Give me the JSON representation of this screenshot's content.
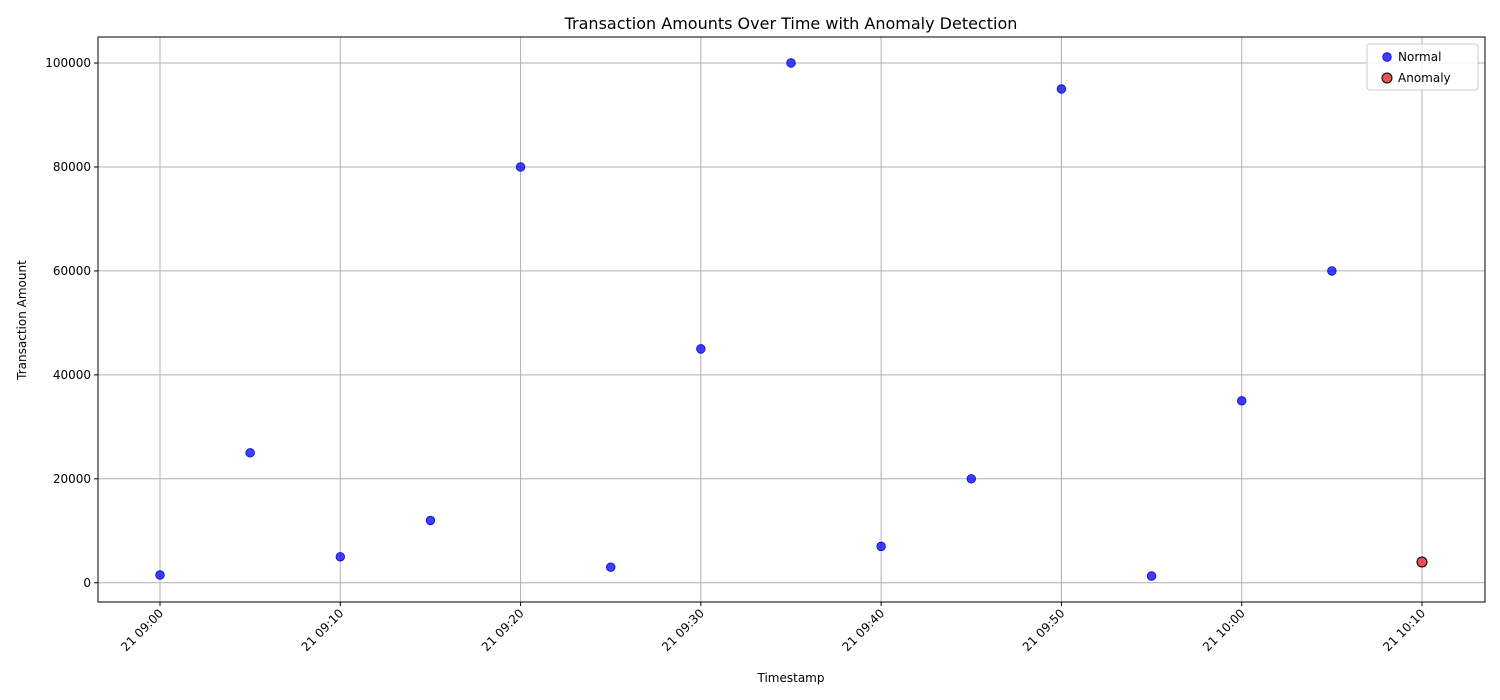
{
  "chart_data": {
    "type": "scatter",
    "title": "Transaction Amounts Over Time with Anomaly Detection",
    "xlabel": "Timestamp",
    "ylabel": "Transaction Amount",
    "x_ticks": [
      "21 09:00",
      "21 09:10",
      "21 09:20",
      "21 09:30",
      "21 09:40",
      "21 09:50",
      "21 10:00",
      "21 10:10"
    ],
    "y_ticks": [
      "0",
      "20000",
      "40000",
      "60000",
      "80000",
      "100000"
    ],
    "ylim": [
      -3700,
      105000
    ],
    "grid": true,
    "legend_position": "top-right",
    "series": [
      {
        "name": "Normal",
        "color": "#0000ee",
        "points": [
          {
            "x": "21 09:00",
            "y": 1500
          },
          {
            "x": "21 09:05",
            "y": 25000
          },
          {
            "x": "21 09:10",
            "y": 5000
          },
          {
            "x": "21 09:15",
            "y": 12000
          },
          {
            "x": "21 09:20",
            "y": 80000
          },
          {
            "x": "21 09:25",
            "y": 3000
          },
          {
            "x": "21 09:30",
            "y": 45000
          },
          {
            "x": "21 09:35",
            "y": 100000
          },
          {
            "x": "21 09:40",
            "y": 7000
          },
          {
            "x": "21 09:45",
            "y": 20000
          },
          {
            "x": "21 09:50",
            "y": 95000
          },
          {
            "x": "21 09:55",
            "y": 1300
          },
          {
            "x": "21 10:00",
            "y": 35000
          },
          {
            "x": "21 10:05",
            "y": 60000
          }
        ]
      },
      {
        "name": "Anomaly",
        "color": "#e31a1c",
        "points": [
          {
            "x": "21 10:10",
            "y": 4000
          }
        ]
      }
    ]
  }
}
